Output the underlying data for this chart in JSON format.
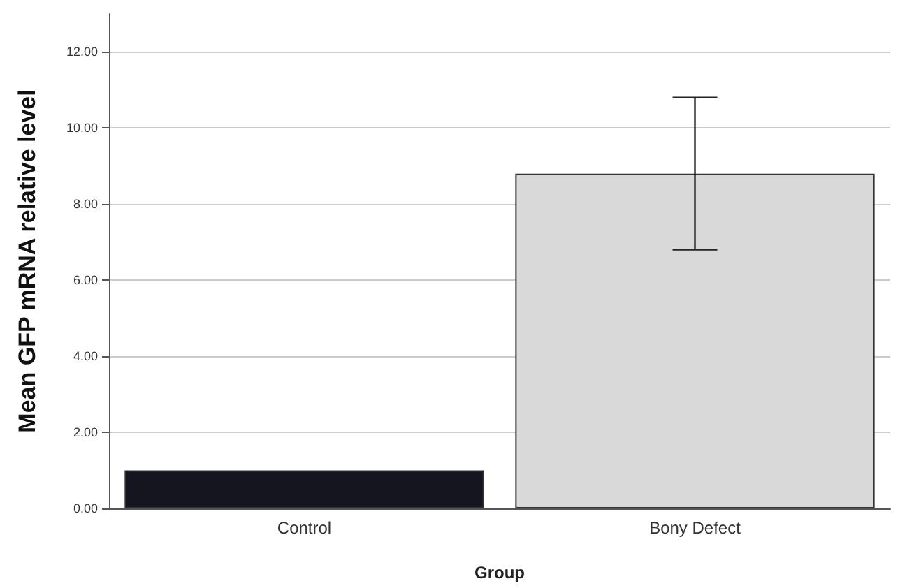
{
  "chart_data": {
    "type": "bar",
    "xlabel": "Group",
    "ylabel": "Mean GFP mRNA relative level",
    "categories": [
      "Control",
      "Bony Defect"
    ],
    "values": [
      1.0,
      8.8
    ],
    "colors": [
      "#15151f",
      "#d9d9d9"
    ],
    "errors": [
      null,
      2.0
    ],
    "ylim": [
      0,
      13
    ],
    "yticks": [
      {
        "value": 0,
        "label": "0.00"
      },
      {
        "value": 2,
        "label": "2.00"
      },
      {
        "value": 4,
        "label": "4.00"
      },
      {
        "value": 6,
        "label": "6.00"
      },
      {
        "value": 8,
        "label": "8.00"
      },
      {
        "value": 10,
        "label": "10.00"
      },
      {
        "value": 12,
        "label": "12.00"
      }
    ],
    "grid": "y"
  }
}
